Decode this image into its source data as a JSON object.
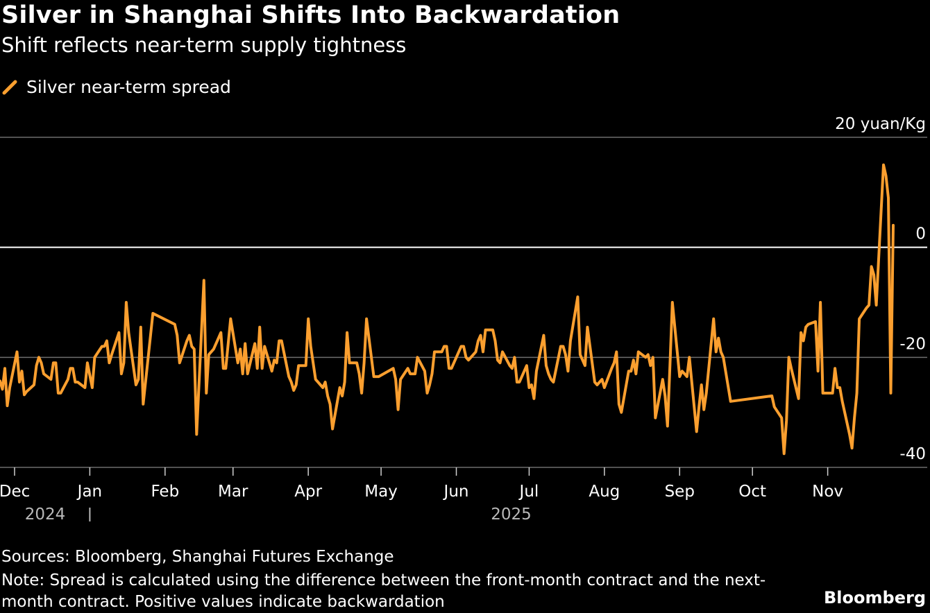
{
  "title": "Silver in Shanghai Shifts Into Backwardation",
  "subtitle": "Shift reflects near-term supply tightness",
  "sources": "Sources: Bloomberg, Shanghai Futures Exchange",
  "note": "Note: Spread is calculated using the difference between the front-month contract and the next-month contract. Positive values indicate backwardation",
  "brand": "Bloomberg",
  "colors": {
    "background": "#000000",
    "series": "#fb9f2f",
    "grid": "#6e6e6e",
    "zero_line": "#ffffff"
  },
  "chart_data": {
    "type": "line",
    "title": "Silver in Shanghai Shifts Into Backwardation",
    "subtitle": "Shift reflects near-term supply tightness",
    "ylabel_unit": "yuan/Kg",
    "ylim": [
      -40,
      20
    ],
    "yticks": [
      20,
      0,
      -20,
      -40
    ],
    "ytick_labels": [
      "20 yuan/Kg",
      "0",
      "-20",
      "-40"
    ],
    "xlim": [
      "2024-11-25",
      "2025-12-12"
    ],
    "xticks": [
      {
        "date": "2024-12-01",
        "label": "Dec"
      },
      {
        "date": "2025-01-01",
        "label": "Jan"
      },
      {
        "date": "2025-02-01",
        "label": "Feb"
      },
      {
        "date": "2025-03-01",
        "label": "Mar"
      },
      {
        "date": "2025-04-01",
        "label": "Apr"
      },
      {
        "date": "2025-05-01",
        "label": "May"
      },
      {
        "date": "2025-06-01",
        "label": "Jun"
      },
      {
        "date": "2025-07-01",
        "label": "Jul"
      },
      {
        "date": "2025-08-01",
        "label": "Aug"
      },
      {
        "date": "2025-09-01",
        "label": "Sep"
      },
      {
        "date": "2025-10-01",
        "label": "Oct"
      },
      {
        "date": "2025-11-01",
        "label": "Nov"
      }
    ],
    "year_labels": [
      {
        "date": "2024-12-05",
        "label": "2024"
      },
      {
        "date": "2025-06-15",
        "label": "2025"
      }
    ],
    "legend": "Silver near-term spread",
    "grid": true,
    "series": [
      {
        "name": "Silver near-term spread",
        "color": "#fb9f2f",
        "points": [
          [
            "2024-11-25",
            -24.3
          ],
          [
            "2024-11-26",
            -25.8
          ],
          [
            "2024-11-27",
            -22.0
          ],
          [
            "2024-11-28",
            -28.8
          ],
          [
            "2024-11-29",
            -25.5
          ],
          [
            "2024-12-02",
            -19.0
          ],
          [
            "2024-12-03",
            -24.5
          ],
          [
            "2024-12-04",
            -22.5
          ],
          [
            "2024-12-05",
            -26.8
          ],
          [
            "2024-12-06",
            -26.2
          ],
          [
            "2024-12-09",
            -25.0
          ],
          [
            "2024-12-10",
            -21.5
          ],
          [
            "2024-12-11",
            -20.0
          ],
          [
            "2024-12-12",
            -21.0
          ],
          [
            "2024-12-13",
            -23.0
          ],
          [
            "2024-12-16",
            -24.0
          ],
          [
            "2024-12-17",
            -21.0
          ],
          [
            "2024-12-18",
            -21.0
          ],
          [
            "2024-12-19",
            -26.5
          ],
          [
            "2024-12-20",
            -26.5
          ],
          [
            "2024-12-23",
            -24.0
          ],
          [
            "2024-12-24",
            -22.0
          ],
          [
            "2024-12-25",
            -22.0
          ],
          [
            "2024-12-26",
            -24.5
          ],
          [
            "2024-12-27",
            -24.5
          ],
          [
            "2024-12-30",
            -25.5
          ],
          [
            "2024-12-31",
            -21.0
          ],
          [
            "2025-01-02",
            -25.5
          ],
          [
            "2025-01-03",
            -20.0
          ],
          [
            "2025-01-06",
            -18.0
          ],
          [
            "2025-01-07",
            -18.0
          ],
          [
            "2025-01-08",
            -17.0
          ],
          [
            "2025-01-09",
            -21.0
          ],
          [
            "2025-01-10",
            -19.5
          ],
          [
            "2025-01-13",
            -15.5
          ],
          [
            "2025-01-14",
            -23.0
          ],
          [
            "2025-01-15",
            -21.0
          ],
          [
            "2025-01-16",
            -10.0
          ],
          [
            "2025-01-17",
            -15.5
          ],
          [
            "2025-01-20",
            -25.0
          ],
          [
            "2025-01-21",
            -24.0
          ],
          [
            "2025-01-22",
            -14.5
          ],
          [
            "2025-01-23",
            -28.5
          ],
          [
            "2025-01-27",
            -12.0
          ],
          [
            "2025-02-05",
            -14.0
          ],
          [
            "2025-02-06",
            -16.0
          ],
          [
            "2025-02-07",
            -21.0
          ],
          [
            "2025-02-10",
            -17.0
          ],
          [
            "2025-02-11",
            -16.0
          ],
          [
            "2025-02-12",
            -18.0
          ],
          [
            "2025-02-13",
            -18.5
          ],
          [
            "2025-02-14",
            -34.0
          ],
          [
            "2025-02-17",
            -6.0
          ],
          [
            "2025-02-18",
            -26.5
          ],
          [
            "2025-02-19",
            -19.5
          ],
          [
            "2025-02-20",
            -19.0
          ],
          [
            "2025-02-21",
            -18.5
          ],
          [
            "2025-02-24",
            -15.5
          ],
          [
            "2025-02-25",
            -22.0
          ],
          [
            "2025-02-26",
            -22.0
          ],
          [
            "2025-02-27",
            -17.5
          ],
          [
            "2025-02-28",
            -13.0
          ],
          [
            "2025-03-03",
            -21.0
          ],
          [
            "2025-03-04",
            -18.5
          ],
          [
            "2025-03-05",
            -23.0
          ],
          [
            "2025-03-06",
            -17.5
          ],
          [
            "2025-03-07",
            -23.0
          ],
          [
            "2025-03-10",
            -17.5
          ],
          [
            "2025-03-11",
            -22.0
          ],
          [
            "2025-03-12",
            -14.5
          ],
          [
            "2025-03-13",
            -22.0
          ],
          [
            "2025-03-14",
            -18.0
          ],
          [
            "2025-03-17",
            -22.5
          ],
          [
            "2025-03-18",
            -20.5
          ],
          [
            "2025-03-19",
            -21.0
          ],
          [
            "2025-03-20",
            -17.0
          ],
          [
            "2025-03-21",
            -17.0
          ],
          [
            "2025-03-24",
            -23.5
          ],
          [
            "2025-03-25",
            -24.5
          ],
          [
            "2025-03-26",
            -26.0
          ],
          [
            "2025-03-27",
            -25.0
          ],
          [
            "2025-03-28",
            -21.5
          ],
          [
            "2025-03-31",
            -21.5
          ],
          [
            "2025-04-01",
            -13.0
          ],
          [
            "2025-04-02",
            -18.0
          ],
          [
            "2025-04-03",
            -21.0
          ],
          [
            "2025-04-04",
            -24.0
          ],
          [
            "2025-04-07",
            -25.5
          ],
          [
            "2025-04-08",
            -24.5
          ],
          [
            "2025-04-09",
            -27.0
          ],
          [
            "2025-04-10",
            -28.5
          ],
          [
            "2025-04-11",
            -33.0
          ],
          [
            "2025-04-14",
            -25.5
          ],
          [
            "2025-04-15",
            -27.0
          ],
          [
            "2025-04-16",
            -24.5
          ],
          [
            "2025-04-17",
            -15.5
          ],
          [
            "2025-04-18",
            -21.0
          ],
          [
            "2025-04-21",
            -21.0
          ],
          [
            "2025-04-22",
            -23.0
          ],
          [
            "2025-04-23",
            -26.5
          ],
          [
            "2025-04-24",
            -21.0
          ],
          [
            "2025-04-25",
            -13.0
          ],
          [
            "2025-04-28",
            -23.5
          ],
          [
            "2025-04-29",
            -23.5
          ],
          [
            "2025-04-30",
            -23.5
          ],
          [
            "2025-05-06",
            -22.0
          ],
          [
            "2025-05-07",
            -24.0
          ],
          [
            "2025-05-08",
            -29.5
          ],
          [
            "2025-05-09",
            -24.0
          ],
          [
            "2025-05-12",
            -22.0
          ],
          [
            "2025-05-13",
            -23.0
          ],
          [
            "2025-05-14",
            -23.0
          ],
          [
            "2025-05-15",
            -23.0
          ],
          [
            "2025-05-16",
            -20.0
          ],
          [
            "2025-05-19",
            -22.5
          ],
          [
            "2025-05-20",
            -26.5
          ],
          [
            "2025-05-21",
            -25.0
          ],
          [
            "2025-05-22",
            -23.0
          ],
          [
            "2025-05-23",
            -19.0
          ],
          [
            "2025-05-26",
            -19.0
          ],
          [
            "2025-05-27",
            -18.0
          ],
          [
            "2025-05-28",
            -18.0
          ],
          [
            "2025-05-29",
            -22.0
          ],
          [
            "2025-05-30",
            -22.0
          ],
          [
            "2025-06-03",
            -18.0
          ],
          [
            "2025-06-04",
            -18.0
          ],
          [
            "2025-06-05",
            -20.0
          ],
          [
            "2025-06-06",
            -20.5
          ],
          [
            "2025-06-09",
            -19.0
          ],
          [
            "2025-06-10",
            -17.0
          ],
          [
            "2025-06-11",
            -16.0
          ],
          [
            "2025-06-12",
            -19.0
          ],
          [
            "2025-06-13",
            -15.0
          ],
          [
            "2025-06-16",
            -15.0
          ],
          [
            "2025-06-17",
            -17.0
          ],
          [
            "2025-06-18",
            -20.5
          ],
          [
            "2025-06-19",
            -21.0
          ],
          [
            "2025-06-20",
            -19.0
          ],
          [
            "2025-06-23",
            -21.5
          ],
          [
            "2025-06-24",
            -22.0
          ],
          [
            "2025-06-25",
            -20.0
          ],
          [
            "2025-06-26",
            -24.5
          ],
          [
            "2025-06-27",
            -24.5
          ],
          [
            "2025-06-30",
            -21.5
          ],
          [
            "2025-07-01",
            -25.5
          ],
          [
            "2025-07-02",
            -25.0
          ],
          [
            "2025-07-03",
            -27.5
          ],
          [
            "2025-07-04",
            -22.5
          ],
          [
            "2025-07-07",
            -16.0
          ],
          [
            "2025-07-08",
            -21.5
          ],
          [
            "2025-07-09",
            -23.0
          ],
          [
            "2025-07-10",
            -24.0
          ],
          [
            "2025-07-11",
            -24.5
          ],
          [
            "2025-07-14",
            -18.0
          ],
          [
            "2025-07-15",
            -18.0
          ],
          [
            "2025-07-16",
            -19.5
          ],
          [
            "2025-07-17",
            -22.5
          ],
          [
            "2025-07-18",
            -17.0
          ],
          [
            "2025-07-21",
            -9.0
          ],
          [
            "2025-07-22",
            -19.5
          ],
          [
            "2025-07-23",
            -20.5
          ],
          [
            "2025-07-24",
            -21.5
          ],
          [
            "2025-07-25",
            -14.5
          ],
          [
            "2025-07-28",
            -24.5
          ],
          [
            "2025-07-29",
            -25.0
          ],
          [
            "2025-07-30",
            -24.5
          ],
          [
            "2025-07-31",
            -24.0
          ],
          [
            "2025-08-01",
            -25.5
          ],
          [
            "2025-08-04",
            -22.0
          ],
          [
            "2025-08-05",
            -21.0
          ],
          [
            "2025-08-06",
            -19.0
          ],
          [
            "2025-08-07",
            -28.5
          ],
          [
            "2025-08-08",
            -30.0
          ],
          [
            "2025-08-11",
            -22.5
          ],
          [
            "2025-08-12",
            -22.5
          ],
          [
            "2025-08-13",
            -20.5
          ],
          [
            "2025-08-14",
            -23.0
          ],
          [
            "2025-08-15",
            -19.0
          ],
          [
            "2025-08-18",
            -20.0
          ],
          [
            "2025-08-19",
            -19.5
          ],
          [
            "2025-08-20",
            -21.5
          ],
          [
            "2025-08-21",
            -20.0
          ],
          [
            "2025-08-22",
            -31.0
          ],
          [
            "2025-08-25",
            -24.0
          ],
          [
            "2025-08-26",
            -27.0
          ],
          [
            "2025-08-27",
            -32.5
          ],
          [
            "2025-08-28",
            -21.5
          ],
          [
            "2025-08-29",
            -10.0
          ],
          [
            "2025-09-01",
            -23.5
          ],
          [
            "2025-09-02",
            -22.5
          ],
          [
            "2025-09-03",
            -23.0
          ],
          [
            "2025-09-04",
            -23.5
          ],
          [
            "2025-09-05",
            -20.0
          ],
          [
            "2025-09-08",
            -33.5
          ],
          [
            "2025-09-09",
            -29.0
          ],
          [
            "2025-09-10",
            -25.0
          ],
          [
            "2025-09-11",
            -29.5
          ],
          [
            "2025-09-12",
            -26.5
          ],
          [
            "2025-09-15",
            -13.0
          ],
          [
            "2025-09-16",
            -19.0
          ],
          [
            "2025-09-17",
            -16.5
          ],
          [
            "2025-09-18",
            -19.0
          ],
          [
            "2025-09-19",
            -20.0
          ],
          [
            "2025-09-22",
            -28.0
          ],
          [
            "2025-10-09",
            -27.0
          ],
          [
            "2025-10-10",
            -29.0
          ],
          [
            "2025-10-13",
            -31.0
          ],
          [
            "2025-10-14",
            -37.5
          ],
          [
            "2025-10-15",
            -31.5
          ],
          [
            "2025-10-16",
            -20.0
          ],
          [
            "2025-10-17",
            -22.0
          ],
          [
            "2025-10-20",
            -27.5
          ],
          [
            "2025-10-21",
            -15.5
          ],
          [
            "2025-10-22",
            -17.0
          ],
          [
            "2025-10-23",
            -14.5
          ],
          [
            "2025-10-24",
            -14.0
          ],
          [
            "2025-10-27",
            -13.5
          ],
          [
            "2025-10-28",
            -22.5
          ],
          [
            "2025-10-29",
            -10.0
          ],
          [
            "2025-10-30",
            -26.5
          ],
          [
            "2025-10-31",
            -26.5
          ],
          [
            "2025-11-03",
            -26.5
          ],
          [
            "2025-11-04",
            -22.0
          ],
          [
            "2025-11-05",
            -25.5
          ],
          [
            "2025-11-06",
            -25.5
          ],
          [
            "2025-11-07",
            -28.0
          ],
          [
            "2025-11-10",
            -34.0
          ],
          [
            "2025-11-11",
            -36.5
          ],
          [
            "2025-11-12",
            -31.0
          ],
          [
            "2025-11-13",
            -26.5
          ],
          [
            "2025-11-14",
            -13.0
          ],
          [
            "2025-11-17",
            -11.0
          ],
          [
            "2025-11-18",
            -10.5
          ],
          [
            "2025-11-19",
            -3.5
          ],
          [
            "2025-11-20",
            -5.0
          ],
          [
            "2025-11-21",
            -10.5
          ],
          [
            "2025-11-24",
            15.0
          ],
          [
            "2025-11-25",
            13.0
          ],
          [
            "2025-11-26",
            9.0
          ],
          [
            "2025-11-27",
            -26.5
          ],
          [
            "2025-11-28",
            4.0
          ]
        ]
      }
    ]
  }
}
